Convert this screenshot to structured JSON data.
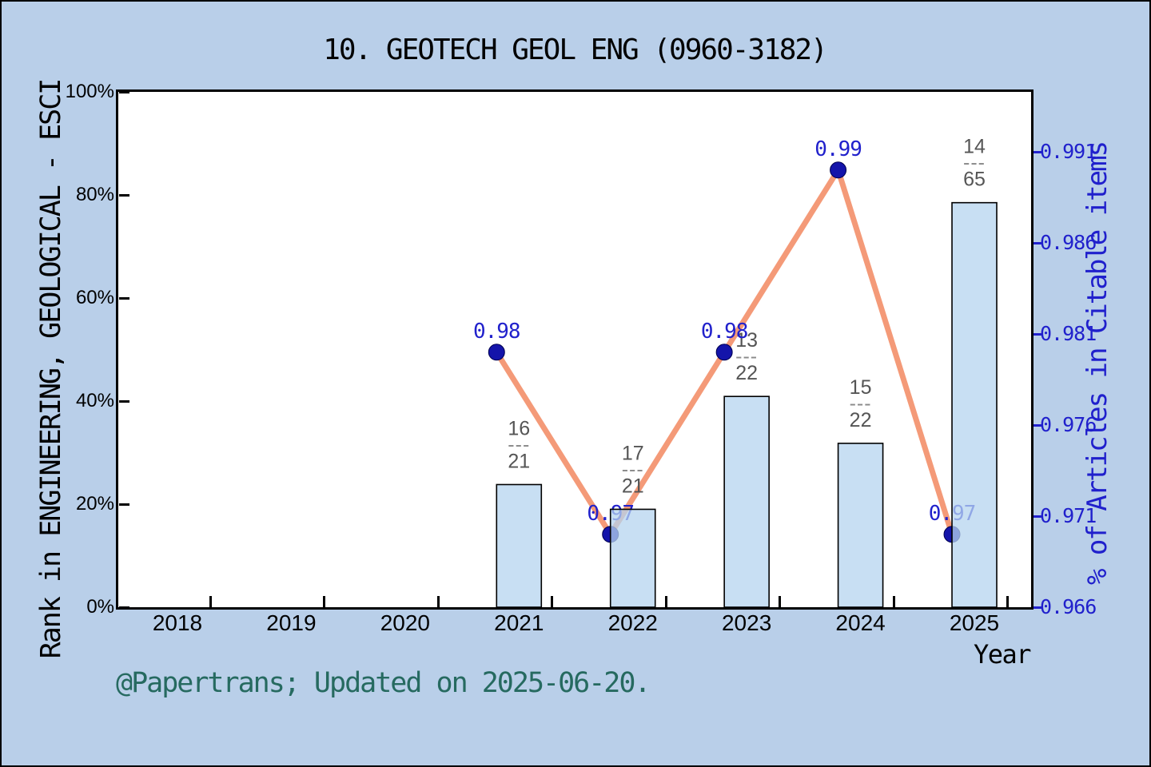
{
  "title": "10. GEOTECH GEOL ENG (0960-3182)",
  "footer": "@Papertrans; Updated on 2025-06-20.",
  "x_axis": {
    "label": "Year",
    "tick_labels": [
      "2018",
      "2019",
      "2020",
      "2021",
      "2022",
      "2023",
      "2024",
      "2025"
    ]
  },
  "left_axis": {
    "label": "Rank in ENGINEERING, GEOLOGICAL - ESCI",
    "tick_labels": [
      "0%",
      "20%",
      "40%",
      "60%",
      "80%",
      "100%"
    ],
    "tick_values": [
      0,
      20,
      40,
      60,
      80,
      100
    ]
  },
  "right_axis": {
    "label": "% of Articles in Citable items",
    "tick_labels": [
      "0.966",
      "0.971",
      "0.976",
      "0.981",
      "0.986",
      "0.991"
    ],
    "tick_values": [
      0.966,
      0.971,
      0.976,
      0.981,
      0.986,
      0.991
    ],
    "color": "#2020cc"
  },
  "chart_data": {
    "type": "bar",
    "title": "10. GEOTECH GEOL ENG (0960-3182)",
    "xlabel": "Year",
    "ylabel_left": "Rank in ENGINEERING, GEOLOGICAL - ESCI",
    "ylabel_right": "% of Articles in Citable items",
    "x": [
      2018,
      2019,
      2020,
      2021,
      2022,
      2023,
      2024,
      2025
    ],
    "ylim_left_percent": [
      0,
      100
    ],
    "ylim_right": [
      0.966,
      0.9943
    ],
    "grid": false,
    "legend": false,
    "series": [
      {
        "name": "Rank in ENGINEERING, GEOLOGICAL - ESCI",
        "type": "bar",
        "axis": "left",
        "years": [
          2021,
          2022,
          2023,
          2024,
          2025
        ],
        "values_percent": [
          23.8,
          19.0,
          40.9,
          31.8,
          78.5
        ],
        "fraction_labels": [
          {
            "num": "16",
            "den": "21"
          },
          {
            "num": "17",
            "den": "21"
          },
          {
            "num": "13",
            "den": "22"
          },
          {
            "num": "15",
            "den": "22"
          },
          {
            "num": "14",
            "den": "65"
          }
        ],
        "fraction_separator": "---",
        "bar_fill": "#b5d4ef",
        "bar_opacity": 0.75,
        "bar_edge": "#000000",
        "label_color": "#555555",
        "separator_color": "#8a8a8a"
      },
      {
        "name": "% of Articles in Citable items",
        "type": "line",
        "axis": "right",
        "years": [
          2021,
          2022,
          2023,
          2024,
          2025
        ],
        "values": [
          0.98,
          0.97,
          0.98,
          0.99,
          0.97
        ],
        "point_labels": [
          "0.98",
          "0.97",
          "0.98",
          "0.99",
          "0.97"
        ],
        "line_color": "#f49a78",
        "marker_color": "#1414aa",
        "marker_edge": "#000050",
        "label_color": "#2121cc"
      }
    ]
  },
  "colors": {
    "background": "#b9cfe9",
    "plot_background": "#ffffff",
    "frame": "#000000",
    "footer_text": "#266a60"
  }
}
